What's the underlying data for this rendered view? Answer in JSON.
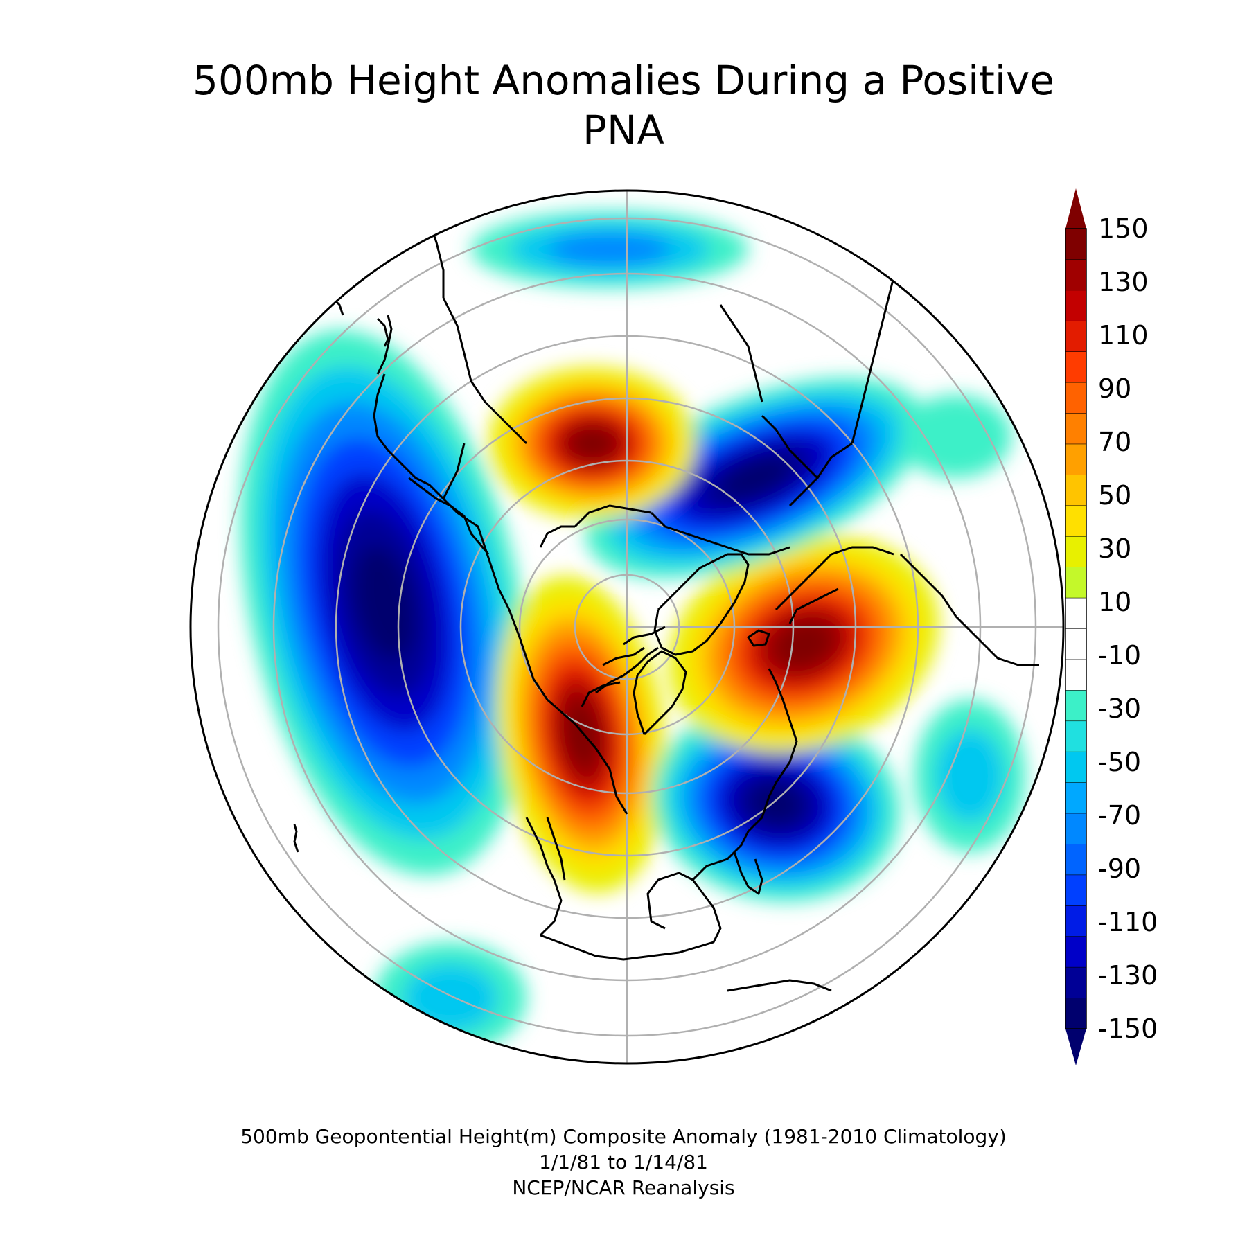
{
  "title_line1": "500mb Height Anomalies During a Positive",
  "title_line2": "PNA",
  "colorbar": {
    "labels": [
      "150",
      "130",
      "110",
      "90",
      "70",
      "50",
      "30",
      "10",
      "-10",
      "-30",
      "-50",
      "-70",
      "-90",
      "-110",
      "-130",
      "-150"
    ],
    "colors": [
      "#7f0000",
      "#a00000",
      "#c30000",
      "#e31c00",
      "#ff3c00",
      "#ff6200",
      "#ff8000",
      "#ffa000",
      "#ffc400",
      "#ffe000",
      "#e8f000",
      "#c4f82a",
      "#ffffff",
      "#ffffff",
      "#ffffff",
      "#3cf0c8",
      "#20e0e0",
      "#00c8f0",
      "#00a8ff",
      "#0088ff",
      "#0064ff",
      "#0040ff",
      "#001ce6",
      "#0000c8",
      "#000096",
      "#00006e"
    ],
    "max_color": "#7f0000",
    "min_color": "#00006e"
  },
  "map": {
    "projection": "north-polar-stereographic",
    "latitude_circles": [
      80,
      70,
      60,
      50,
      40,
      30,
      20
    ],
    "anomaly_centers": [
      {
        "region": "North Pacific / Aleutians",
        "sign": "negative",
        "value": -150
      },
      {
        "region": "Western North America",
        "sign": "positive",
        "value": 150
      },
      {
        "region": "Southeastern United States",
        "sign": "negative",
        "value": -150
      },
      {
        "region": "North Atlantic",
        "sign": "positive",
        "value": 150
      },
      {
        "region": "Europe",
        "sign": "negative",
        "value": -150
      },
      {
        "region": "Siberia",
        "sign": "positive",
        "value": 150
      }
    ]
  },
  "footer": {
    "line1": "500mb Geopontential Height(m) Composite Anomaly (1981-2010 Climatology)",
    "line2": "1/1/81 to 1/14/81",
    "line3": "NCEP/NCAR Reanalysis"
  }
}
